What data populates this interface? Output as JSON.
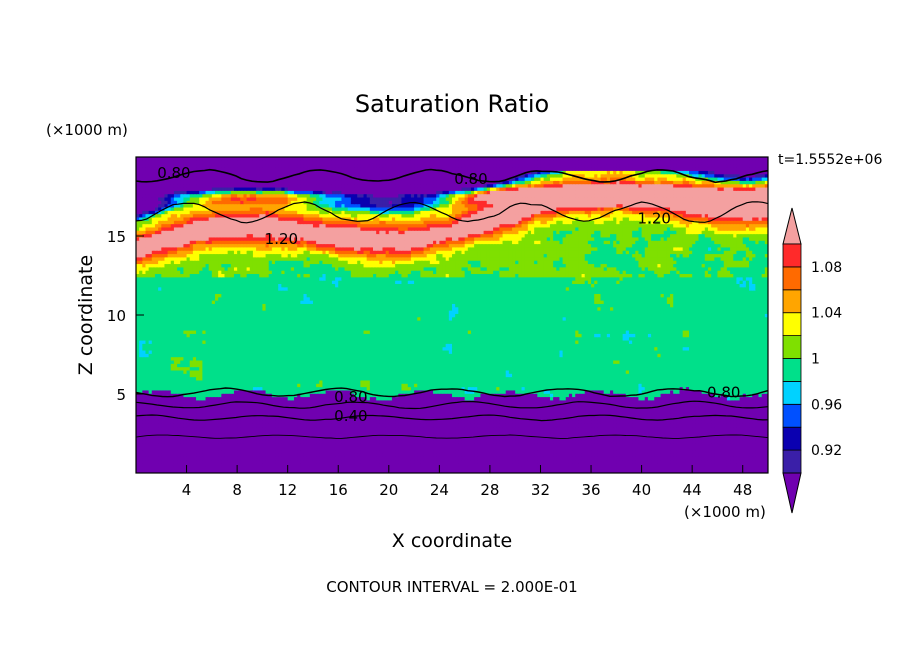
{
  "chart_data": {
    "type": "heatmap",
    "title": "Saturation Ratio",
    "xlabel": "X coordinate",
    "ylabel": "Z coordinate",
    "x_unit": "(×1000 m)",
    "y_unit": "(×1000 m)",
    "time_label": "t=1.5552e+06",
    "footer": "CONTOUR INTERVAL = 2.000E-01",
    "xlim": [
      0,
      50
    ],
    "ylim": [
      0,
      20
    ],
    "x_ticks": [
      4,
      8,
      12,
      16,
      20,
      24,
      28,
      32,
      36,
      40,
      44,
      48
    ],
    "x_tick_labels": [
      "4",
      "8",
      "12",
      "16",
      "20",
      "24",
      "28",
      "32",
      "36",
      "40",
      "44",
      "48"
    ],
    "y_ticks": [
      5,
      10,
      15
    ],
    "y_tick_labels": [
      "5",
      "10",
      "15"
    ],
    "colorbar": {
      "boundaries": [
        0.9,
        0.92,
        0.94,
        0.96,
        0.98,
        1.0,
        1.02,
        1.04,
        1.06,
        1.08,
        1.1
      ],
      "labels": [
        {
          "value": 0.92,
          "text": "0.92"
        },
        {
          "value": 0.96,
          "text": "0.96"
        },
        {
          "value": 1.0,
          "text": "1"
        },
        {
          "value": 1.04,
          "text": "1.04"
        },
        {
          "value": 1.08,
          "text": "1.08"
        }
      ],
      "colors": [
        "#3a1fa8",
        "#0a00b0",
        "#0050ff",
        "#00d2ff",
        "#00e08a",
        "#7fe000",
        "#ffff00",
        "#ffa500",
        "#ff6a00",
        "#ff2a2a"
      ],
      "under_color": "#7000b0",
      "over_color": "#f4a0a0"
    },
    "contour_interval": 0.2,
    "contour_labels": [
      {
        "text": "0.80",
        "x": 3.0,
        "y": 19.0
      },
      {
        "text": "0.80",
        "x": 26.5,
        "y": 18.6
      },
      {
        "text": "1.20",
        "x": 41.0,
        "y": 16.1
      },
      {
        "text": "1.20",
        "x": 11.5,
        "y": 14.8
      },
      {
        "text": "0.80",
        "x": 17.0,
        "y": 4.8
      },
      {
        "text": "0.40",
        "x": 17.0,
        "y": 3.6
      },
      {
        "text": "0.80",
        "x": 46.5,
        "y": 5.1
      }
    ]
  }
}
